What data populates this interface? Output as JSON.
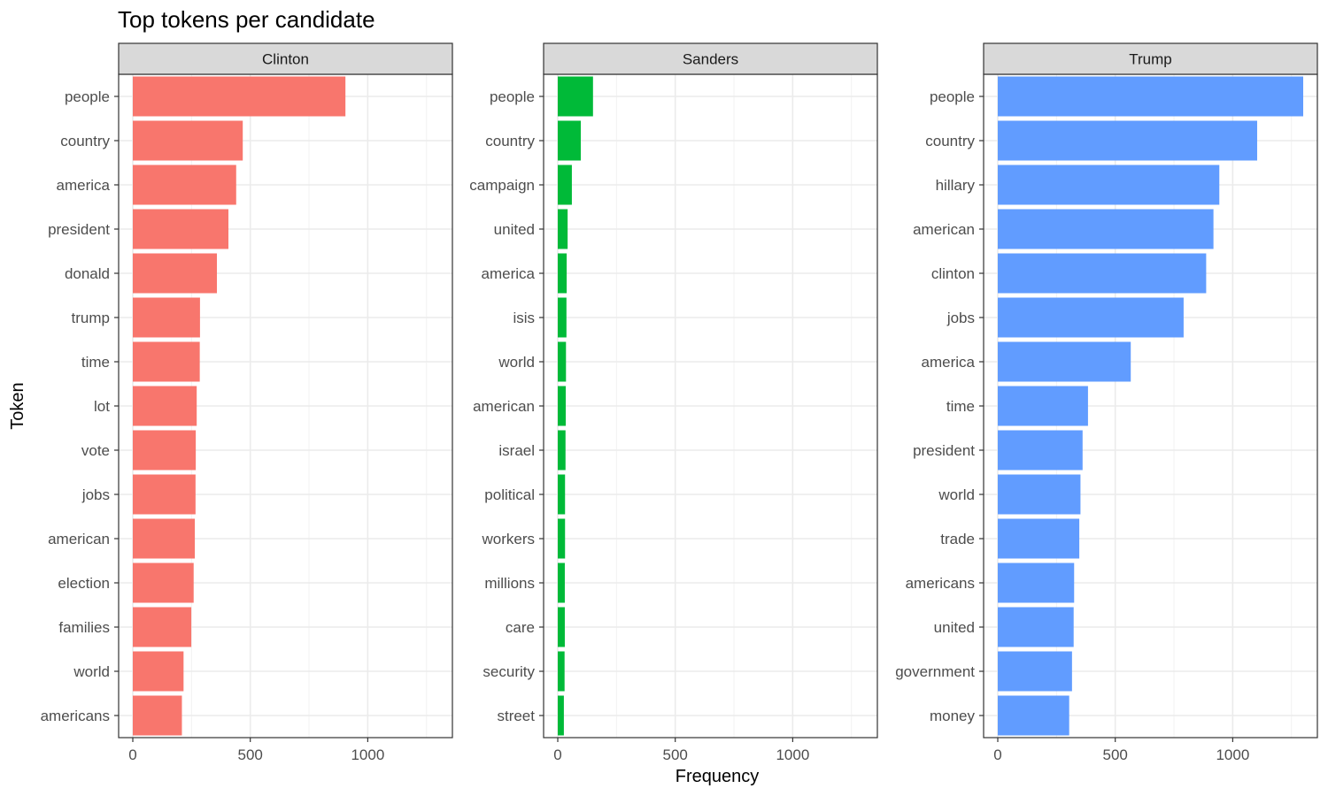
{
  "chart_data": {
    "type": "bar",
    "orientation": "horizontal",
    "title": "Top tokens per candidate",
    "xlabel": "Frequency",
    "ylabel": "Token",
    "xlim": [
      0,
      1300
    ],
    "x_ticks": [
      0,
      500,
      1000
    ],
    "grid": true,
    "facets": [
      {
        "name": "Clinton",
        "color": "#F8766D",
        "categories": [
          "people",
          "country",
          "america",
          "president",
          "donald",
          "trump",
          "time",
          "lot",
          "vote",
          "jobs",
          "american",
          "election",
          "families",
          "world",
          "americans"
        ],
        "values": [
          905,
          468,
          440,
          407,
          358,
          286,
          285,
          272,
          268,
          267,
          264,
          259,
          249,
          216,
          209
        ]
      },
      {
        "name": "Sanders",
        "color": "#00BA38",
        "categories": [
          "people",
          "country",
          "campaign",
          "united",
          "america",
          "isis",
          "world",
          "american",
          "israel",
          "political",
          "workers",
          "millions",
          "care",
          "security",
          "street"
        ],
        "values": [
          150,
          98,
          60,
          42,
          38,
          37,
          35,
          34,
          33,
          31,
          31,
          30,
          30,
          29,
          26
        ]
      },
      {
        "name": "Trump",
        "color": "#619CFF",
        "categories": [
          "people",
          "country",
          "hillary",
          "american",
          "clinton",
          "jobs",
          "america",
          "time",
          "president",
          "world",
          "trade",
          "americans",
          "united",
          "government",
          "money"
        ],
        "values": [
          1300,
          1104,
          943,
          918,
          887,
          791,
          566,
          384,
          361,
          352,
          347,
          325,
          323,
          316,
          304
        ]
      }
    ]
  }
}
